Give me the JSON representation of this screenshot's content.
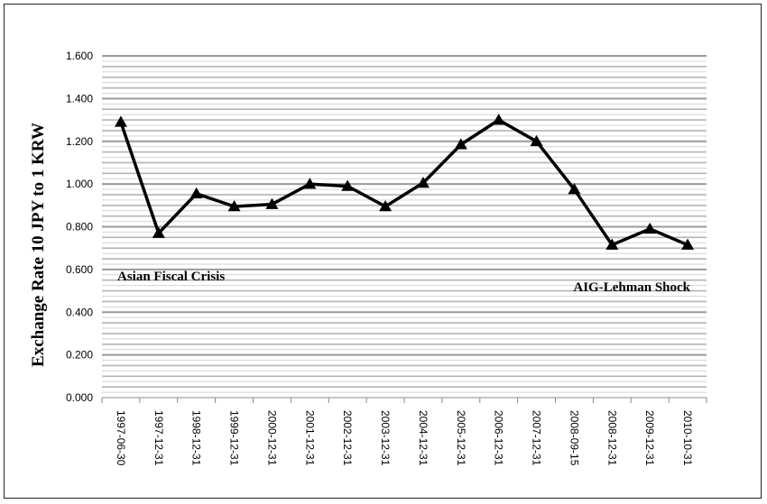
{
  "chart_data": {
    "type": "line",
    "ylabel": "Exchange Rate 10 JPY to 1 KRW",
    "ylim": [
      0,
      1.6
    ],
    "yticks": [
      "0.000",
      "0.200",
      "0.400",
      "0.600",
      "0.800",
      "1.000",
      "1.200",
      "1.400",
      "1.600"
    ],
    "grid": true,
    "categories": [
      "1997-06-30",
      "1997-12-31",
      "1998-12-31",
      "1999-12-31",
      "2000-12-31",
      "2001-12-31",
      "2002-12-31",
      "2003-12-31",
      "2004-12-31",
      "2005-12-31",
      "2006-12-31",
      "2007-12-31",
      "2008-09-15",
      "2008-12-31",
      "2009-12-31",
      "2010-10-31"
    ],
    "series": [
      {
        "values": [
          1.29,
          0.77,
          0.955,
          0.895,
          0.905,
          1.0,
          0.99,
          0.895,
          1.005,
          1.185,
          1.3,
          1.2,
          0.975,
          0.715,
          0.79,
          0.715
        ],
        "color": "#000000",
        "marker": "triangle"
      }
    ],
    "annotations": [
      {
        "text": "Asian Fiscal Crisis"
      },
      {
        "text": "AIG-Lehman Shock"
      }
    ]
  }
}
